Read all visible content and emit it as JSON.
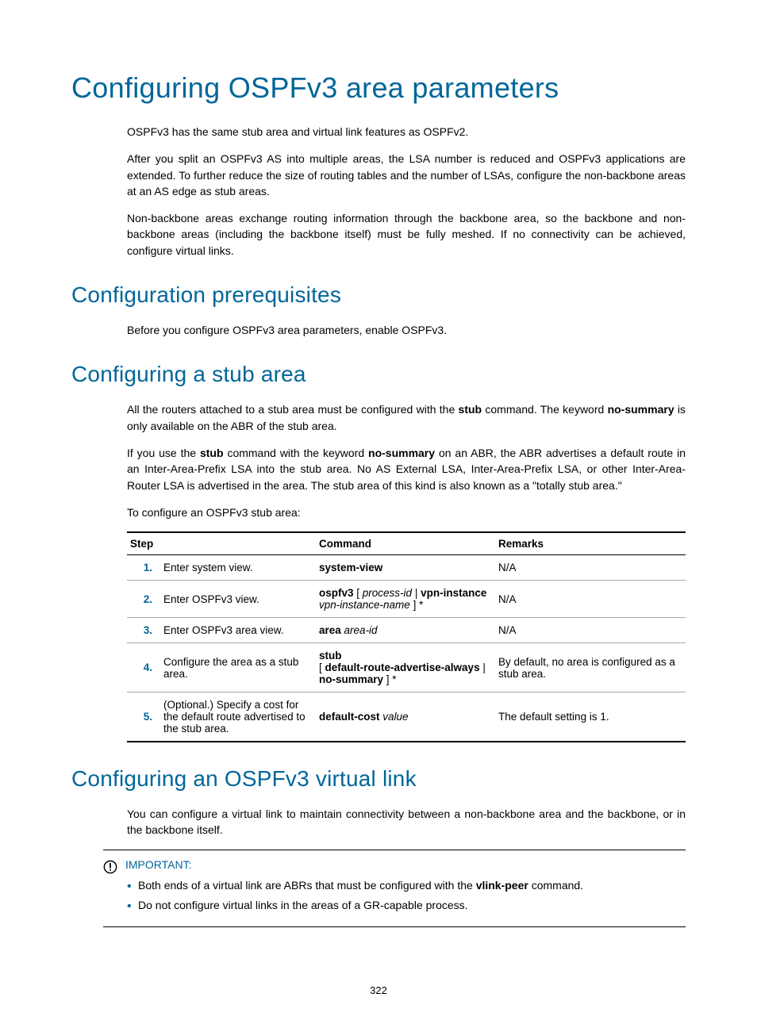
{
  "page_number": "322",
  "h1": "Configuring OSPFv3 area parameters",
  "intro_p1": "OSPFv3 has the same stub area and virtual link features as OSPFv2.",
  "intro_p2": "After you split an OSPFv3 AS into multiple areas, the LSA number is reduced and OSPFv3 applications are extended. To further reduce the size of routing tables and the number of LSAs, configure the non-backbone areas at an AS edge as stub areas.",
  "intro_p3": "Non-backbone areas exchange routing information through the backbone area, so the backbone and non-backbone areas (including the backbone itself) must be fully meshed. If no connectivity can be achieved, configure virtual links.",
  "h2_prereq": "Configuration prerequisites",
  "prereq_p1": "Before you configure OSPFv3 area parameters, enable OSPFv3.",
  "h2_stub": "Configuring a stub area",
  "stub_p1_a": "All the routers attached to a stub area must be configured with the ",
  "stub_p1_b": "stub",
  "stub_p1_c": " command. The keyword ",
  "stub_p1_d": "no-summary",
  "stub_p1_e": " is only available on the ABR of the stub area.",
  "stub_p2_a": "If you use the ",
  "stub_p2_b": "stub",
  "stub_p2_c": " command with the keyword ",
  "stub_p2_d": "no-summary",
  "stub_p2_e": " on an ABR, the ABR advertises a default route in an Inter-Area-Prefix LSA into the stub area. No AS External LSA, Inter-Area-Prefix LSA, or other Inter-Area-Router LSA is advertised in the area. The stub area of this kind is also known as a \"totally stub area.\"",
  "stub_p3": "To configure an OSPFv3 stub area:",
  "table": {
    "headers": {
      "step": "Step",
      "command": "Command",
      "remarks": "Remarks"
    },
    "rows": [
      {
        "num": "1.",
        "step": "Enter system view.",
        "cmd_html": "<span class='cmd-bold'>system-view</span>",
        "remarks": "N/A"
      },
      {
        "num": "2.",
        "step": "Enter OSPFv3 view.",
        "cmd_html": "<span class='cmd-bold'>ospfv3</span> [ <span class='cmd-italic'>process-id</span> | <span class='cmd-bold'>vpn-instance</span> <span class='cmd-italic'>vpn-instance-name</span> ] *",
        "remarks": "N/A"
      },
      {
        "num": "3.",
        "step": "Enter OSPFv3 area view.",
        "cmd_html": "<span class='cmd-bold'>area</span> <span class='cmd-italic'>area-id</span>",
        "remarks": "N/A"
      },
      {
        "num": "4.",
        "step": "Configure the area as a stub area.",
        "cmd_html": "<span class='cmd-bold'>stub</span><br>[ <span class='cmd-bold'>default-route-advertise-always</span> | <span class='cmd-bold'>no-summary</span> ] *",
        "remarks": "By default, no area is configured as a stub area."
      },
      {
        "num": "5.",
        "step": "(Optional.) Specify a cost for the default route advertised to the stub area.",
        "cmd_html": "<span class='cmd-bold'>default-cost</span> <span class='cmd-italic'>value</span>",
        "remarks": "The default setting is 1."
      }
    ]
  },
  "h2_vlink": "Configuring an OSPFv3 virtual link",
  "vlink_p1": "You can configure a virtual link to maintain connectivity between a non-backbone area and the backbone, or in the backbone itself.",
  "notice": {
    "label": "IMPORTANT:",
    "items": [
      {
        "pre": "Both ends of a virtual link are ABRs that must be configured with the ",
        "bold": "vlink-peer",
        "post": " command."
      },
      {
        "pre": "Do not configure virtual links in the areas of a GR-capable process.",
        "bold": "",
        "post": ""
      }
    ]
  },
  "colors": {
    "heading": "#006699",
    "text": "#000000",
    "bullet": "#006699"
  },
  "col_widths": {
    "num": "28px",
    "step": "196px",
    "cmd": "226px"
  }
}
